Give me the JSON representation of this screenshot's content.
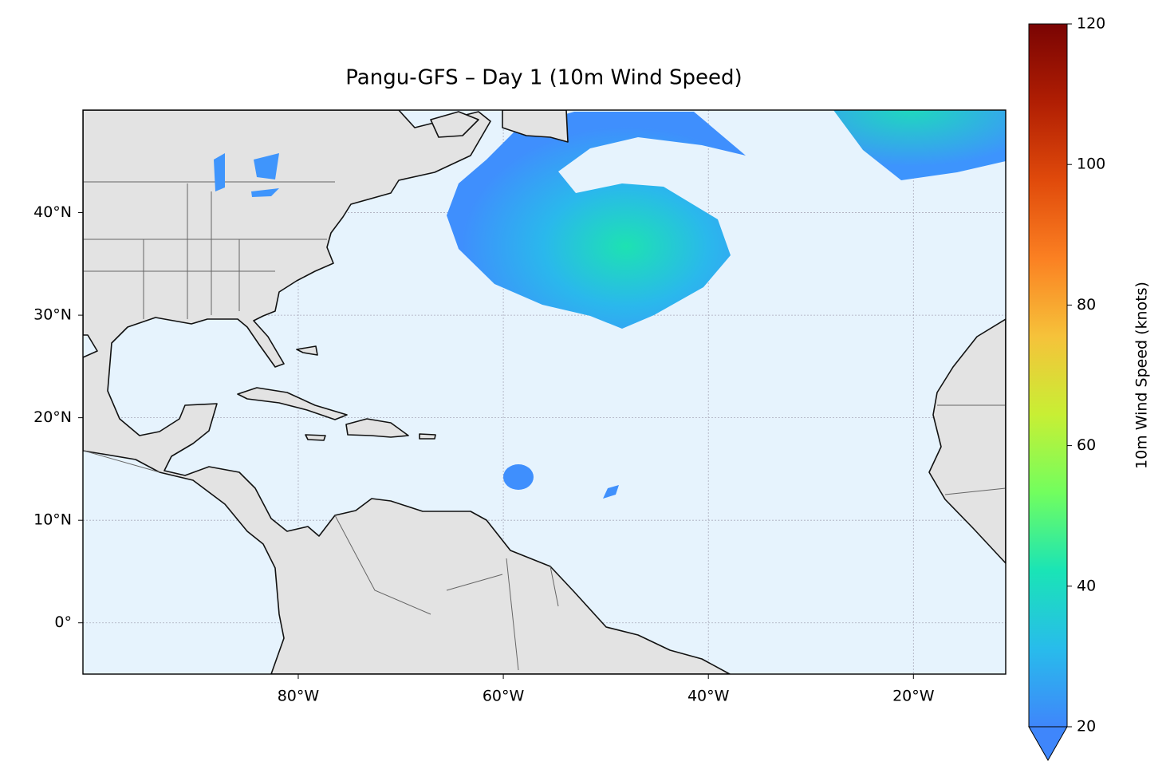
{
  "chart_data": {
    "type": "map",
    "title": "Pangu-GFS – Day 1 (10m Wind Speed)",
    "xlim": [
      -101,
      -11
    ],
    "ylim": [
      -5,
      50
    ],
    "xticks": [
      {
        "value": -80,
        "label": "80°W"
      },
      {
        "value": -60,
        "label": "60°W"
      },
      {
        "value": -40,
        "label": "40°W"
      },
      {
        "value": -20,
        "label": "20°W"
      }
    ],
    "yticks": [
      {
        "value": 0,
        "label": "0°"
      },
      {
        "value": 10,
        "label": "10°N"
      },
      {
        "value": 20,
        "label": "20°N"
      },
      {
        "value": 30,
        "label": "30°N"
      },
      {
        "value": 40,
        "label": "40°N"
      }
    ],
    "grid": true,
    "colorbar": {
      "label": "10m Wind Speed (knots)",
      "lim": [
        20,
        120
      ],
      "ticks": [
        20,
        40,
        60,
        80,
        100,
        120
      ],
      "colormap": "turbo",
      "extend": "min"
    }
  }
}
